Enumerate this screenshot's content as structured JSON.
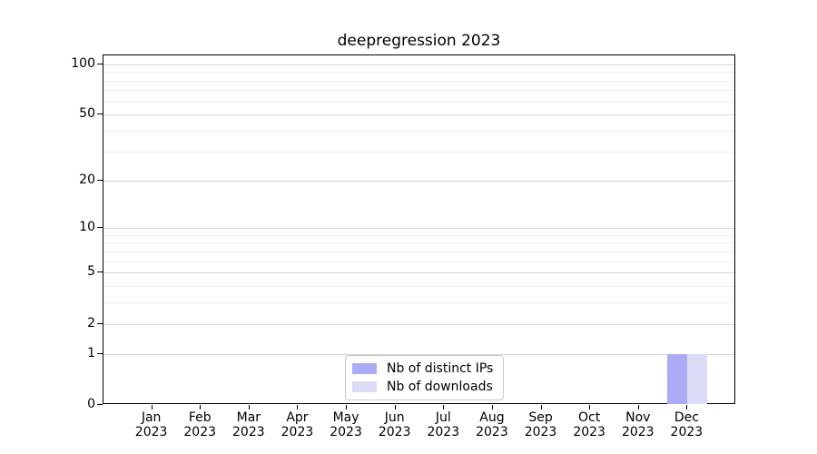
{
  "chart_data": {
    "type": "bar",
    "title": "deepregression 2023",
    "categories": [
      "Jan",
      "Feb",
      "Mar",
      "Apr",
      "May",
      "Jun",
      "Jul",
      "Aug",
      "Sep",
      "Oct",
      "Nov",
      "Dec"
    ],
    "category_year": "2023",
    "series": [
      {
        "name": "Nb of distinct IPs",
        "color": "#acacf6",
        "values": [
          0,
          0,
          0,
          0,
          0,
          0,
          0,
          0,
          0,
          0,
          0,
          1
        ]
      },
      {
        "name": "Nb of downloads",
        "color": "#dcdcf6",
        "values": [
          0,
          0,
          0,
          0,
          0,
          0,
          0,
          0,
          0,
          0,
          0,
          1
        ]
      }
    ],
    "xlabel": "",
    "ylabel": "",
    "y_scale": "log1p",
    "ylim": [
      0,
      113
    ],
    "y_ticks": [
      0,
      1,
      2,
      5,
      10,
      20,
      50,
      100
    ],
    "y_minor_ticks": [
      3,
      4,
      6,
      7,
      8,
      9,
      30,
      40,
      60,
      70,
      80,
      90
    ],
    "grid": "horizontal",
    "legend_position": "bottom-center"
  },
  "colors": {
    "major_grid": "#d5d5d5",
    "minor_grid": "#efefef",
    "axis": "#000000",
    "background": "#ffffff"
  }
}
